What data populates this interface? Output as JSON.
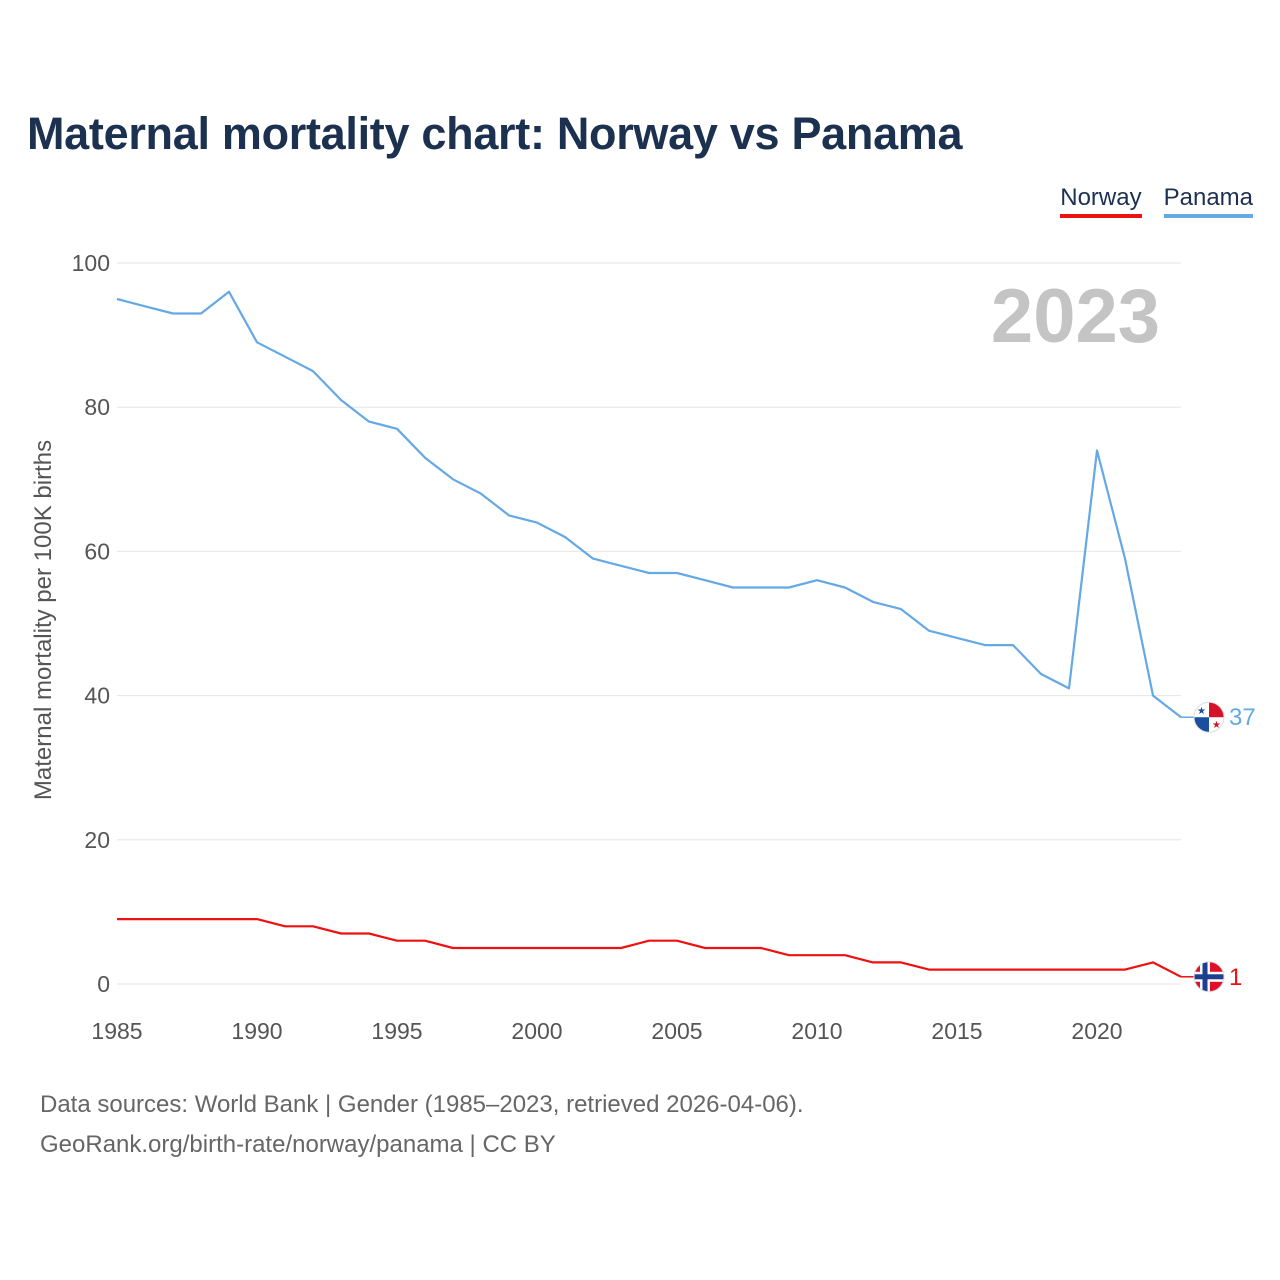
{
  "title": "Maternal mortality chart: Norway vs Panama",
  "legend": [
    {
      "label": "Norway",
      "color": "#ee1111"
    },
    {
      "label": "Panama",
      "color": "#64a8e6"
    }
  ],
  "year_label": "2023",
  "footer": {
    "line1": "Data sources: World Bank | Gender (1985–2023, retrieved 2026-04-06).",
    "line2": "GeoRank.org/birth-rate/norway/panama | CC BY"
  },
  "chart_data": {
    "type": "line",
    "title": "Maternal mortality chart: Norway vs Panama",
    "xlabel": "",
    "ylabel": "Maternal mortality per 100K births",
    "xlim": [
      1985,
      2023
    ],
    "ylim": [
      0,
      100
    ],
    "x_ticks": [
      1985,
      1990,
      1995,
      2000,
      2005,
      2010,
      2015,
      2020
    ],
    "y_ticks": [
      0,
      20,
      40,
      60,
      80,
      100
    ],
    "grid": true,
    "legend_position": "top-right",
    "x": [
      1985,
      1986,
      1987,
      1988,
      1989,
      1990,
      1991,
      1992,
      1993,
      1994,
      1995,
      1996,
      1997,
      1998,
      1999,
      2000,
      2001,
      2002,
      2003,
      2004,
      2005,
      2006,
      2007,
      2008,
      2009,
      2010,
      2011,
      2012,
      2013,
      2014,
      2015,
      2016,
      2017,
      2018,
      2019,
      2020,
      2021,
      2022,
      2023
    ],
    "series": [
      {
        "name": "Norway",
        "color": "#ee1111",
        "end_label": "1",
        "values": [
          9,
          9,
          9,
          9,
          9,
          9,
          8,
          8,
          7,
          7,
          6,
          6,
          5,
          5,
          5,
          5,
          5,
          5,
          5,
          6,
          6,
          5,
          5,
          5,
          4,
          4,
          4,
          3,
          3,
          2,
          2,
          2,
          2,
          2,
          2,
          2,
          2,
          3,
          1
        ]
      },
      {
        "name": "Panama",
        "color": "#64a8e6",
        "end_label": "37",
        "values": [
          95,
          94,
          93,
          93,
          96,
          89,
          87,
          85,
          81,
          78,
          77,
          73,
          70,
          68,
          65,
          64,
          62,
          59,
          58,
          57,
          57,
          56,
          55,
          55,
          55,
          56,
          55,
          53,
          52,
          49,
          48,
          47,
          47,
          43,
          41,
          74,
          59,
          40,
          37
        ]
      }
    ]
  }
}
